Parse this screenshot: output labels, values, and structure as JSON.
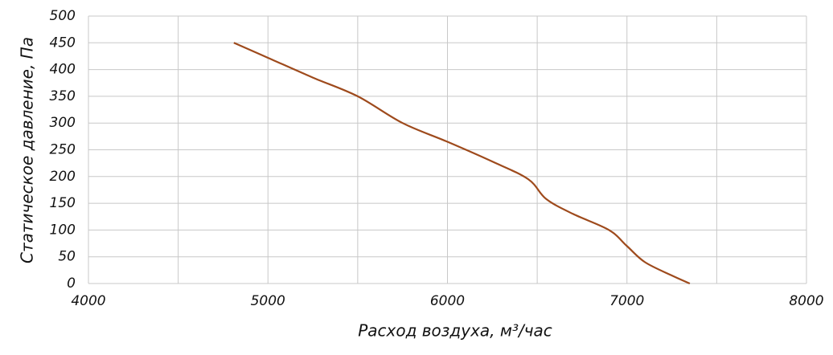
{
  "chart_data": {
    "type": "line",
    "xlabel": "Расход воздуха, м³/час",
    "ylabel": "Статическое давление, Па",
    "x": [
      4810,
      5000,
      5250,
      5500,
      5750,
      6000,
      6250,
      6450,
      6550,
      6700,
      6900,
      7000,
      7100,
      7250,
      7350
    ],
    "series": [
      {
        "name": "Статическое давление",
        "color": "#9e4a1c",
        "values": [
          450,
          422,
          385,
          350,
          300,
          265,
          228,
          195,
          158,
          130,
          100,
          70,
          40,
          15,
          0
        ]
      }
    ],
    "xlim": [
      4000,
      8000
    ],
    "xticks": [
      4000,
      5000,
      6000,
      7000,
      8000
    ],
    "xminor": [
      4500,
      5500,
      6500,
      7500
    ],
    "ylim": [
      0,
      500
    ],
    "yticks": [
      0,
      50,
      100,
      150,
      200,
      250,
      300,
      350,
      400,
      450,
      500
    ],
    "grid": true
  }
}
